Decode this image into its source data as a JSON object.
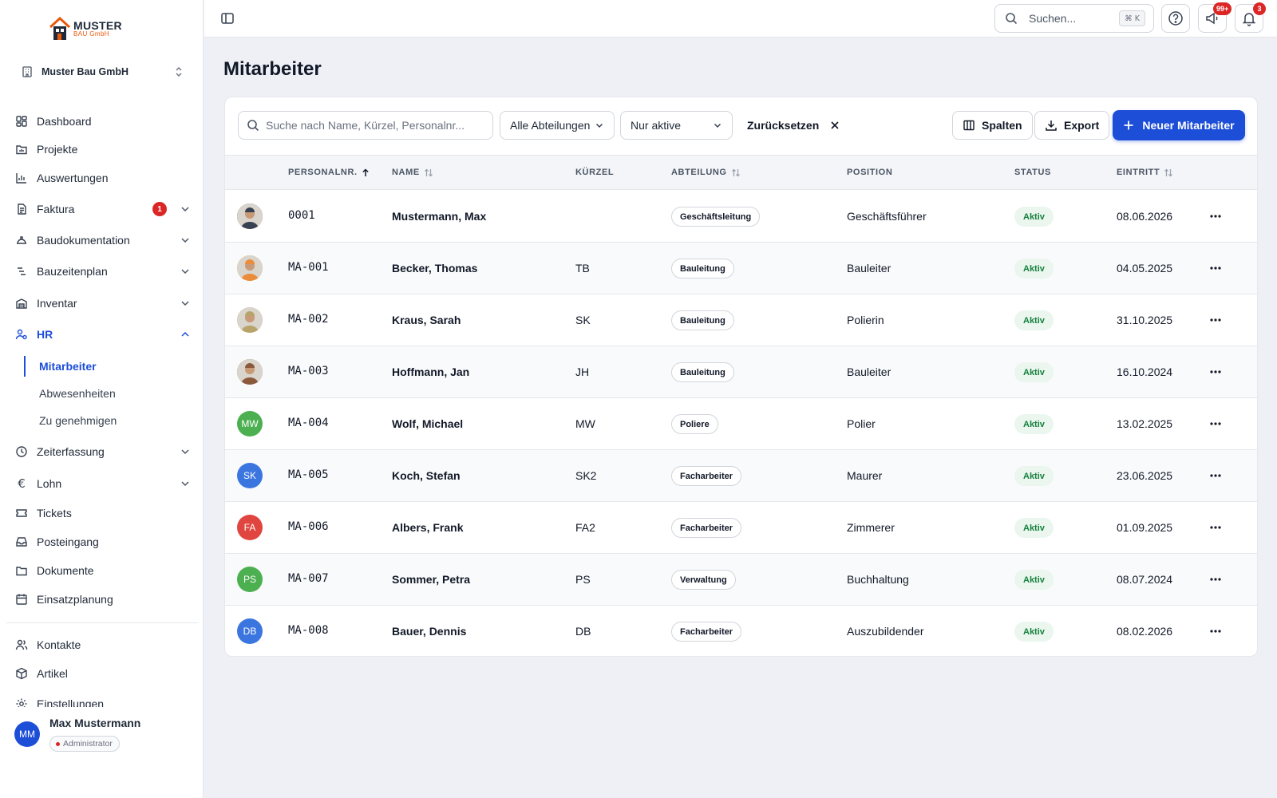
{
  "logo": {
    "main": "MUSTER",
    "sub": "BAU GmbH"
  },
  "company": {
    "name": "Muster Bau GmbH"
  },
  "nav": {
    "items": [
      {
        "label": "Dashboard"
      },
      {
        "label": "Projekte"
      },
      {
        "label": "Auswertungen"
      },
      {
        "label": "Faktura",
        "badge": "1"
      },
      {
        "label": "Baudokumentation"
      },
      {
        "label": "Bauzeitenplan"
      },
      {
        "label": "Inventar"
      },
      {
        "label": "HR"
      },
      {
        "label": "Zeiterfassung"
      },
      {
        "label": "Lohn"
      },
      {
        "label": "Tickets"
      },
      {
        "label": "Posteingang"
      },
      {
        "label": "Dokumente"
      },
      {
        "label": "Einsatzplanung"
      },
      {
        "label": "Kontakte"
      },
      {
        "label": "Artikel"
      },
      {
        "label": "Einstellungen"
      }
    ],
    "hr_sub": [
      {
        "label": "Mitarbeiter"
      },
      {
        "label": "Abwesenheiten"
      },
      {
        "label": "Zu genehmigen"
      }
    ]
  },
  "user": {
    "name": "Max Mustermann",
    "initials": "MM",
    "role": "Administrator"
  },
  "topbar": {
    "search_placeholder": "Suchen...",
    "shortcut": "⌘ K",
    "announce_badge": "99+",
    "notif_badge": "3"
  },
  "page": {
    "title": "Mitarbeiter"
  },
  "toolbar": {
    "search_placeholder": "Suche nach Name, Kürzel, Personalnr...",
    "dept_filter": "Alle Abteilungen",
    "status_filter": "Nur aktive",
    "reset_label": "Zurücksetzen",
    "columns_label": "Spalten",
    "export_label": "Export",
    "new_label": "Neuer Mitarbeiter"
  },
  "table": {
    "headers": {
      "personalnr": "PERSONALNR.",
      "name": "NAME",
      "kuerzel": "KÜRZEL",
      "abteilung": "ABTEILUNG",
      "position": "POSITION",
      "status": "STATUS",
      "eintritt": "EINTRITT"
    },
    "rows": [
      {
        "nr": "0001",
        "name": "Mustermann, Max",
        "kuerzel": "",
        "abteilung": "Geschäftsleitung",
        "position": "Geschäftsführer",
        "status": "Aktiv",
        "eintritt": "08.06.2026",
        "initials": "",
        "photo": true,
        "color": "#374151"
      },
      {
        "nr": "MA-001",
        "name": "Becker, Thomas",
        "kuerzel": "TB",
        "abteilung": "Bauleitung",
        "position": "Bauleiter",
        "status": "Aktiv",
        "eintritt": "04.05.2025",
        "initials": "",
        "photo": true,
        "color": "#ea8c3a"
      },
      {
        "nr": "MA-002",
        "name": "Kraus, Sarah",
        "kuerzel": "SK",
        "abteilung": "Bauleitung",
        "position": "Polierin",
        "status": "Aktiv",
        "eintritt": "31.10.2025",
        "initials": "",
        "photo": true,
        "color": "#b8a46a"
      },
      {
        "nr": "MA-003",
        "name": "Hoffmann, Jan",
        "kuerzel": "JH",
        "abteilung": "Bauleitung",
        "position": "Bauleiter",
        "status": "Aktiv",
        "eintritt": "16.10.2024",
        "initials": "",
        "photo": true,
        "color": "#8b5a3c"
      },
      {
        "nr": "MA-004",
        "name": "Wolf, Michael",
        "kuerzel": "MW",
        "abteilung": "Poliere",
        "position": "Polier",
        "status": "Aktiv",
        "eintritt": "13.02.2025",
        "initials": "MW",
        "photo": false,
        "color": "#4caf50"
      },
      {
        "nr": "MA-005",
        "name": "Koch, Stefan",
        "kuerzel": "SK2",
        "abteilung": "Facharbeiter",
        "position": "Maurer",
        "status": "Aktiv",
        "eintritt": "23.06.2025",
        "initials": "SK",
        "photo": false,
        "color": "#3b76e0"
      },
      {
        "nr": "MA-006",
        "name": "Albers, Frank",
        "kuerzel": "FA2",
        "abteilung": "Facharbeiter",
        "position": "Zimmerer",
        "status": "Aktiv",
        "eintritt": "01.09.2025",
        "initials": "FA",
        "photo": false,
        "color": "#e0463f"
      },
      {
        "nr": "MA-007",
        "name": "Sommer, Petra",
        "kuerzel": "PS",
        "abteilung": "Verwaltung",
        "position": "Buchhaltung",
        "status": "Aktiv",
        "eintritt": "08.07.2024",
        "initials": "PS",
        "photo": false,
        "color": "#4caf50"
      },
      {
        "nr": "MA-008",
        "name": "Bauer, Dennis",
        "kuerzel": "DB",
        "abteilung": "Facharbeiter",
        "position": "Auszubildender",
        "status": "Aktiv",
        "eintritt": "08.02.2026",
        "initials": "DB",
        "photo": false,
        "color": "#3b76e0"
      }
    ]
  },
  "colors": {
    "accent": "#1d4ed8",
    "danger": "#dc2626",
    "success": "#15803d"
  }
}
